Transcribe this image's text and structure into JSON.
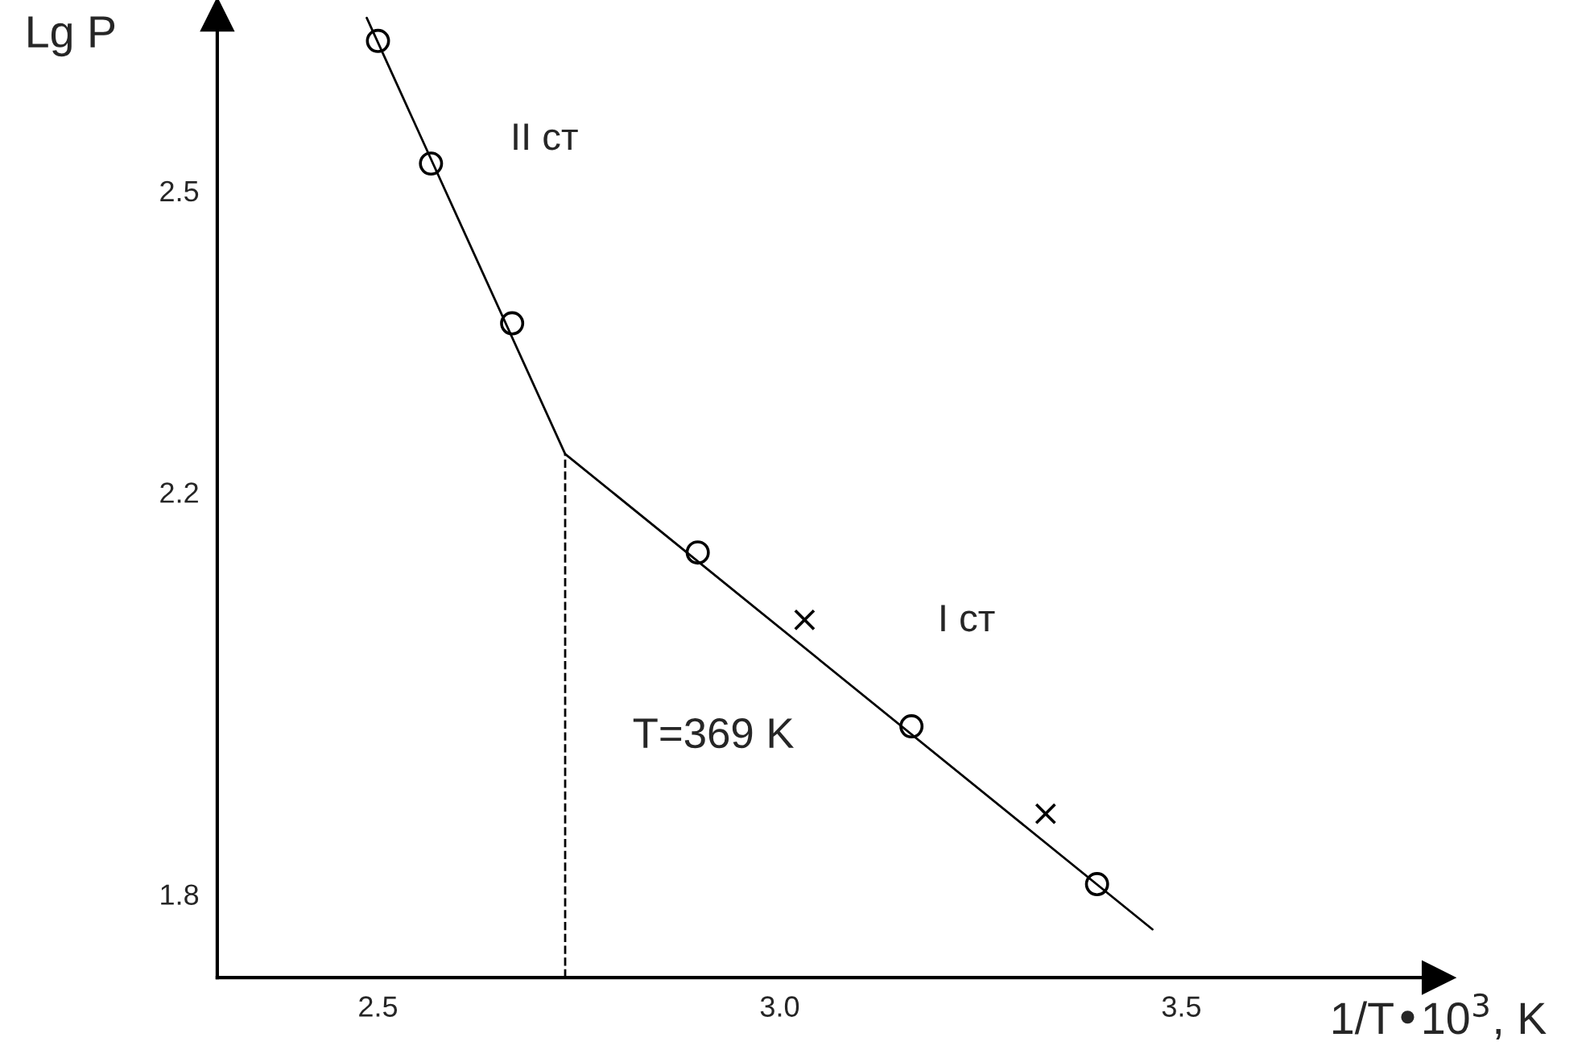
{
  "chart_data": {
    "type": "scatter",
    "xlabel": "1/T•10$^{3}$, K",
    "ylabel": "Lg P",
    "xlim": [
      2.3,
      3.82
    ],
    "ylim": [
      1.717,
      2.675
    ],
    "xticks": [
      2.5,
      {
        "value": 3.0,
        "label": "3.0"
      },
      3.5
    ],
    "yticks": [
      1.8,
      2.2,
      2.5
    ],
    "grid": false,
    "legend": false,
    "series": [
      {
        "marker": "circle",
        "color": "#000000",
        "x": [
          2.5,
          2.566,
          2.667,
          2.898,
          3.164,
          3.395
        ],
        "values": [
          2.649,
          2.527,
          2.368,
          2.14,
          1.967,
          1.81
        ]
      },
      {
        "marker": "cross",
        "color": "#000000",
        "x": [
          3.031,
          3.331
        ],
        "values": [
          2.073,
          1.88
        ]
      },
      {
        "type": "line",
        "marker": "none",
        "line_style": "solid",
        "color": "#000000",
        "x": [
          2.486,
          2.733,
          3.464
        ],
        "values": [
          2.672,
          2.238,
          1.765
        ]
      }
    ],
    "ref_lines": [
      {
        "axis": "x",
        "value": 2.733,
        "line_style": "dashed",
        "color": "#000000"
      }
    ],
    "annotations": [
      "II ст",
      "I ст",
      "T=369 K"
    ]
  }
}
